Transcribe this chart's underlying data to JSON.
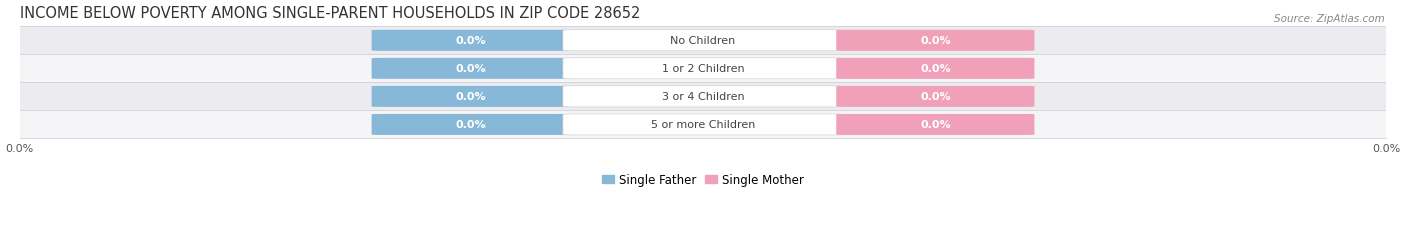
{
  "title": "INCOME BELOW POVERTY AMONG SINGLE-PARENT HOUSEHOLDS IN ZIP CODE 28652",
  "source": "Source: ZipAtlas.com",
  "categories": [
    "No Children",
    "1 or 2 Children",
    "3 or 4 Children",
    "5 or more Children"
  ],
  "father_values": [
    0.0,
    0.0,
    0.0,
    0.0
  ],
  "mother_values": [
    0.0,
    0.0,
    0.0,
    0.0
  ],
  "father_color": "#88b8d8",
  "mother_color": "#f0a0b8",
  "row_bg_even": "#ebebf0",
  "row_bg_odd": "#f5f5f8",
  "xlim": [
    -1.0,
    1.0
  ],
  "title_fontsize": 10.5,
  "label_fontsize": 8.5,
  "tick_fontsize": 8,
  "source_fontsize": 7.5,
  "legend_father": "Single Father",
  "legend_mother": "Single Mother",
  "figure_bg": "#ffffff",
  "separator_color": "#d0d0d8",
  "center_label_bg": "#ffffff",
  "value_text_color": "#ffffff",
  "category_text_color": "#444444"
}
